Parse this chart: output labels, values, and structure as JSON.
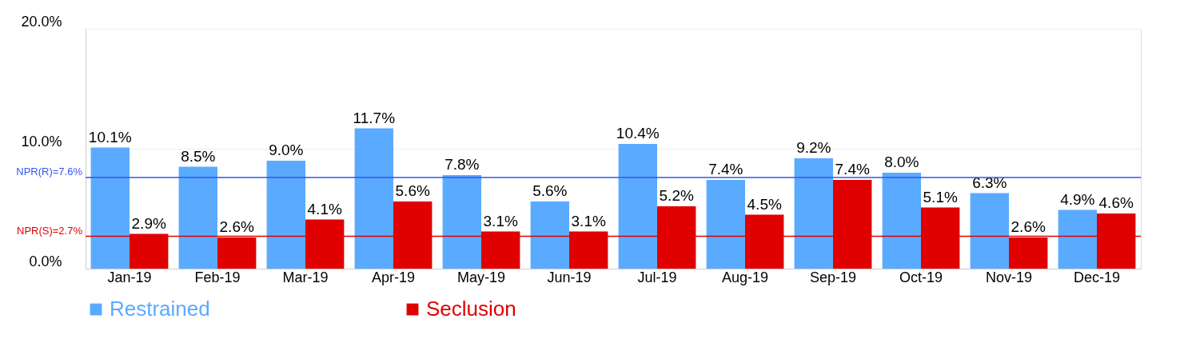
{
  "chart_data": {
    "type": "bar",
    "categories": [
      "Jan-19",
      "Feb-19",
      "Mar-19",
      "Apr-19",
      "May-19",
      "Jun-19",
      "Jul-19",
      "Aug-19",
      "Sep-19",
      "Oct-19",
      "Nov-19",
      "Dec-19"
    ],
    "series": [
      {
        "name": "Restrained",
        "color": "#5aabff",
        "values": [
          10.1,
          8.5,
          9.0,
          11.7,
          7.8,
          5.6,
          10.4,
          7.4,
          9.2,
          8.0,
          6.3,
          4.9
        ],
        "value_labels": [
          "10.1%",
          "8.5%",
          "9.0%",
          "11.7%",
          "7.8%",
          "5.6%",
          "10.4%",
          "7.4%",
          "9.2%",
          "8.0%",
          "6.3%",
          "4.9%"
        ]
      },
      {
        "name": "Seclusion",
        "color": "#e00000",
        "values": [
          2.9,
          2.6,
          4.1,
          5.6,
          3.1,
          3.1,
          5.2,
          4.5,
          7.4,
          5.1,
          2.6,
          4.6
        ],
        "value_labels": [
          "2.9%",
          "2.6%",
          "4.1%",
          "5.6%",
          "3.1%",
          "3.1%",
          "5.2%",
          "4.5%",
          "7.4%",
          "5.1%",
          "2.6%",
          "4.6%"
        ]
      }
    ],
    "ylim": [
      0,
      20
    ],
    "yticks": [
      {
        "value": 0,
        "label": "0.0%"
      },
      {
        "value": 10,
        "label": "10.0%"
      },
      {
        "value": 20,
        "label": "20.0%"
      }
    ],
    "ref_lines": [
      {
        "axis": "y",
        "value": 7.6,
        "label": "NPR(R)=7.6%",
        "color": "#3355ee"
      },
      {
        "axis": "y",
        "value": 2.7,
        "label": "NPR(S)=2.7%",
        "color": "#e00000"
      }
    ],
    "grid": "y",
    "legend": "bottom"
  }
}
